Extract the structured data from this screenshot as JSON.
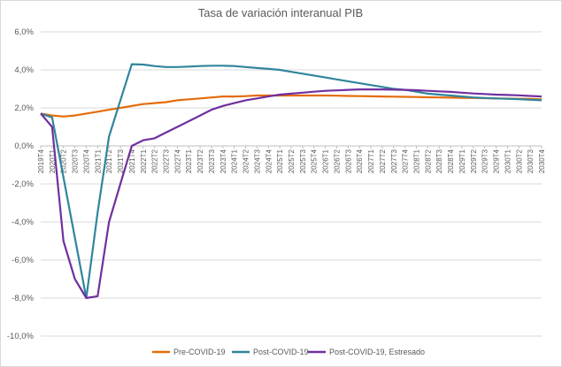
{
  "chart_data": {
    "type": "line",
    "title": "Tasa de variación interanual PIB",
    "xlabel": "",
    "ylabel": "",
    "ylim": [
      -10,
      6
    ],
    "ytick_step": 2,
    "ytick_labels": [
      "6,0%",
      "4,0%",
      "2,0%",
      "0,0%",
      "-2,0%",
      "-4,0%",
      "-6,0%",
      "-8,0%",
      "-10,0%"
    ],
    "grid": "horizontal",
    "legend_position": "bottom",
    "x": [
      "2019T4",
      "2020T1",
      "2020T2",
      "2020T3",
      "2020T4",
      "2021T1",
      "2021T2",
      "2021T3",
      "2021T4",
      "2022T1",
      "2022T2",
      "2022T3",
      "2022T4",
      "2023T1",
      "2023T2",
      "2023T3",
      "2023T4",
      "2024T1",
      "2024T2",
      "2024T3",
      "2024T4",
      "2025T1",
      "2025T2",
      "2025T3",
      "2025T4",
      "2026T1",
      "2026T2",
      "2026T3",
      "2026T4",
      "2027T1",
      "2027T2",
      "2027T3",
      "2027T4",
      "2028T1",
      "2028T2",
      "2028T3",
      "2028T4",
      "2029T1",
      "2029T2",
      "2029T3",
      "2029T4",
      "2030T1",
      "2030T2",
      "2030T3",
      "2030T4"
    ],
    "series": [
      {
        "name": "Pre-COVID-19",
        "color": "#e46c0a",
        "values": [
          1.7,
          1.6,
          1.55,
          1.6,
          1.7,
          1.8,
          1.9,
          2.0,
          2.1,
          2.2,
          2.25,
          2.3,
          2.4,
          2.45,
          2.5,
          2.55,
          2.6,
          2.6,
          2.62,
          2.65,
          2.65,
          2.65,
          2.65,
          2.65,
          2.65,
          2.65,
          2.64,
          2.63,
          2.62,
          2.61,
          2.6,
          2.59,
          2.58,
          2.57,
          2.56,
          2.55,
          2.54,
          2.53,
          2.52,
          2.51,
          2.5,
          2.49,
          2.48,
          2.47,
          2.45
        ]
      },
      {
        "name": "Post-COVID-19",
        "color": "#31859c",
        "values": [
          1.7,
          1.5,
          null,
          null,
          -8.0,
          -3.5,
          0.5,
          null,
          4.3,
          4.28,
          4.2,
          4.15,
          4.15,
          4.17,
          4.2,
          4.22,
          4.22,
          4.2,
          4.15,
          4.1,
          4.05,
          4.0,
          3.9,
          3.8,
          3.7,
          3.6,
          3.5,
          3.4,
          3.3,
          3.2,
          3.1,
          3.0,
          2.95,
          2.85,
          2.75,
          2.7,
          2.65,
          2.6,
          2.55,
          2.52,
          2.5,
          2.48,
          2.46,
          2.43,
          2.4
        ]
      },
      {
        "name": "Post-COVID-19, Estresado",
        "color": "#7030a0",
        "values": [
          1.7,
          1.0,
          -5.0,
          -7.0,
          -8.0,
          -7.9,
          -4.0,
          -2.0,
          0.0,
          0.3,
          0.4,
          0.7,
          1.0,
          1.3,
          1.6,
          1.9,
          2.1,
          2.25,
          2.4,
          2.5,
          2.6,
          2.7,
          2.75,
          2.8,
          2.85,
          2.9,
          2.92,
          2.95,
          2.97,
          2.97,
          2.97,
          2.96,
          2.95,
          2.93,
          2.9,
          2.87,
          2.84,
          2.8,
          2.76,
          2.73,
          2.7,
          2.68,
          2.66,
          2.63,
          2.6
        ]
      }
    ]
  }
}
